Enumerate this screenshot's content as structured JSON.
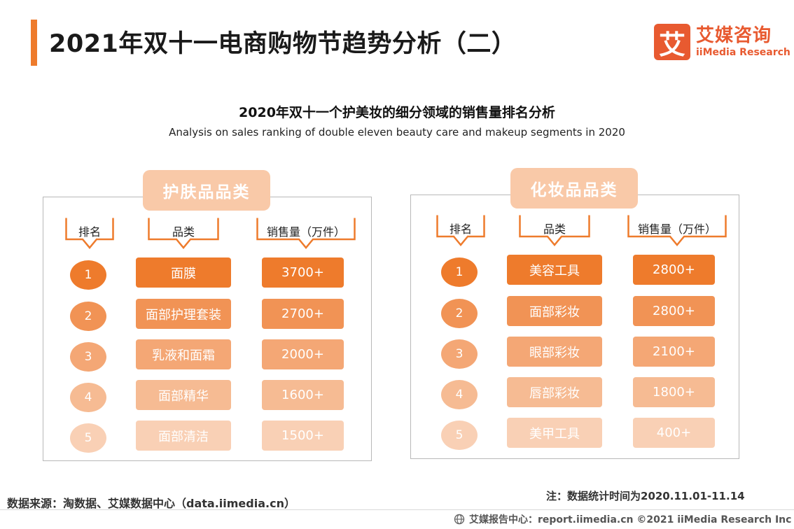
{
  "header": {
    "title": "2021年双十一电商购物节趋势分析（二）",
    "logo_mark": "艾",
    "logo_cn": "艾媒咨询",
    "logo_en": "iiMedia Research"
  },
  "chart": {
    "title": "2020年双十一个护美妆的细分领域的销售量排名分析",
    "subtitle": "Analysis on sales ranking of double eleven beauty care and makeup segments in 2020"
  },
  "skincare": {
    "tab": "护肤品品类",
    "headers": {
      "rank": "排名",
      "category": "品类",
      "sales": "销售量（万件）"
    },
    "rows": [
      {
        "rank": "1",
        "category": "面膜",
        "sales": "3700+"
      },
      {
        "rank": "2",
        "category": "面部护理套装",
        "sales": "2700+"
      },
      {
        "rank": "3",
        "category": "乳液和面霜",
        "sales": "2000+"
      },
      {
        "rank": "4",
        "category": "面部精华",
        "sales": "1600+"
      },
      {
        "rank": "5",
        "category": "面部清洁",
        "sales": "1500+"
      }
    ]
  },
  "makeup": {
    "tab": "化妆品品类",
    "headers": {
      "rank": "排名",
      "category": "品类",
      "sales": "销售量（万件）"
    },
    "rows": [
      {
        "rank": "1",
        "category": "美容工具",
        "sales": "2800+"
      },
      {
        "rank": "2",
        "category": "面部彩妆",
        "sales": "2800+"
      },
      {
        "rank": "3",
        "category": "眼部彩妆",
        "sales": "2100+"
      },
      {
        "rank": "4",
        "category": "唇部彩妆",
        "sales": "1800+"
      },
      {
        "rank": "5",
        "category": "美甲工具",
        "sales": "400+"
      }
    ]
  },
  "colors": {
    "accent": "#ee7b2c",
    "shades": [
      "#ee7b2c",
      "#f19355",
      "#f4a775",
      "#f6bb93",
      "#f9d0b5"
    ]
  },
  "footer": {
    "source": "数据来源：淘数据、艾媒数据中心（data.iimedia.cn）",
    "note": "注：数据统计时间为2020.11.01-11.14",
    "copyright": "艾媒报告中心：report.iimedia.cn  ©2021  iiMedia Research  Inc"
  }
}
